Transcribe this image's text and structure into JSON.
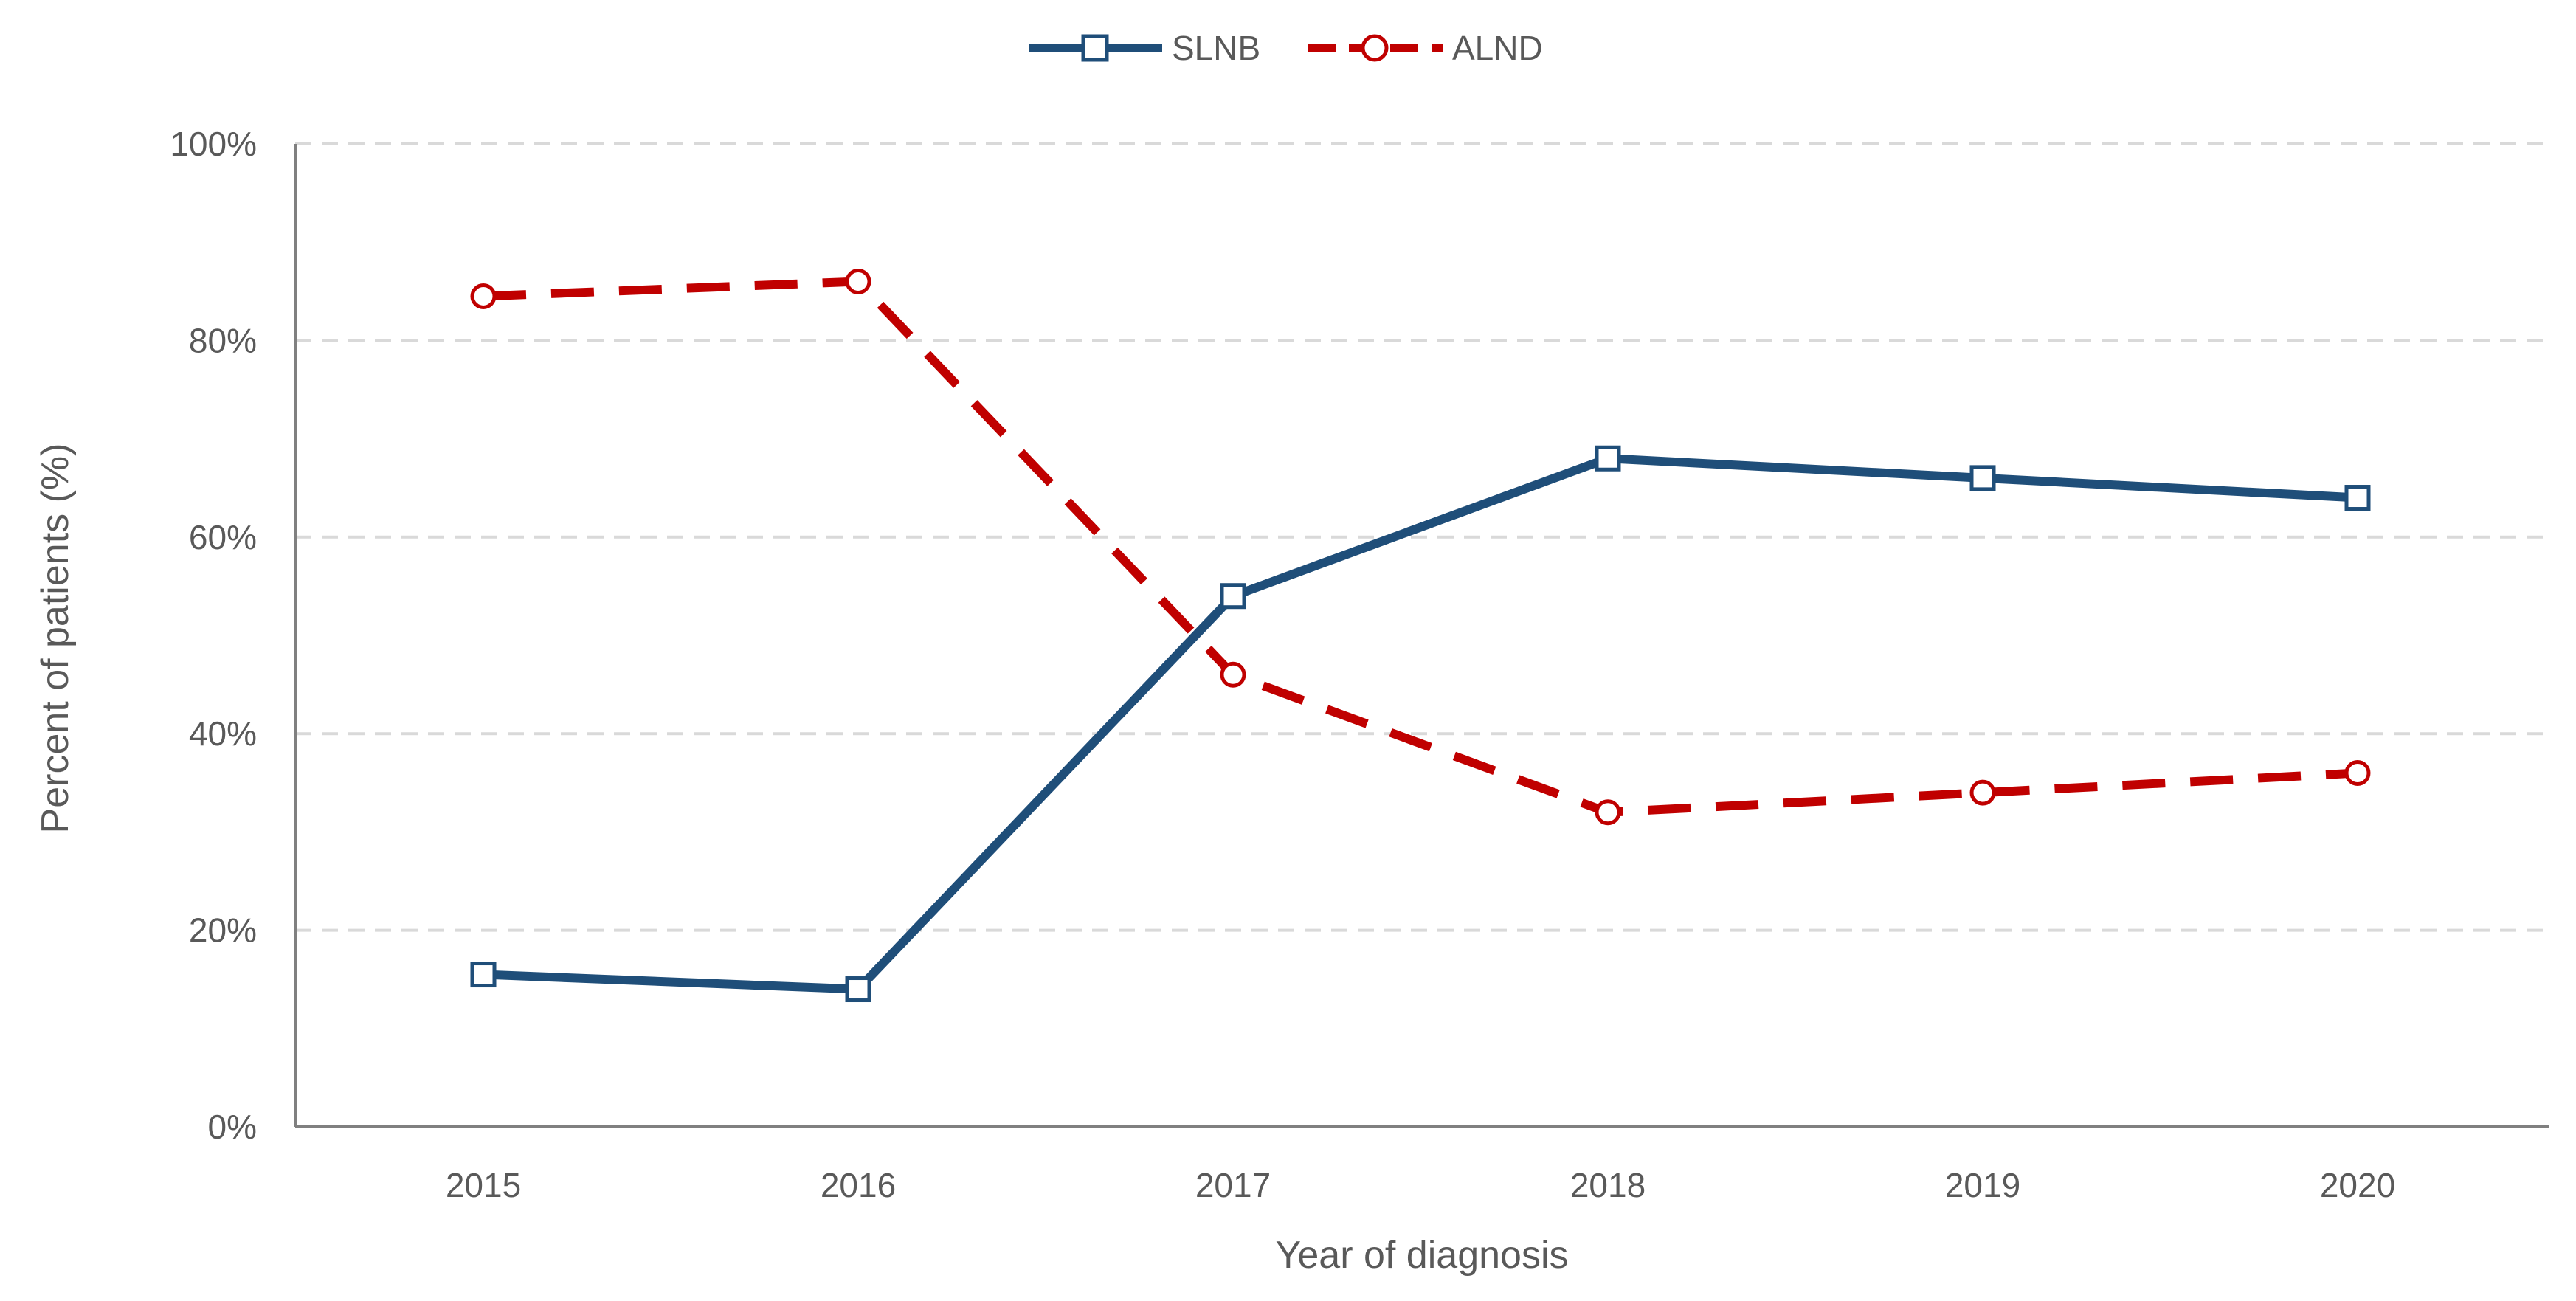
{
  "chart_data": {
    "type": "line",
    "title": "",
    "xlabel": "Year of diagnosis",
    "ylabel": "Percent of patients (%)",
    "categories": [
      "2015",
      "2016",
      "2017",
      "2018",
      "2019",
      "2020"
    ],
    "ylim": [
      0,
      100
    ],
    "yticks": [
      0,
      20,
      40,
      60,
      80,
      100
    ],
    "ytick_labels": [
      "0%",
      "20%",
      "40%",
      "60%",
      "80%",
      "100%"
    ],
    "grid": "horizontal dashed",
    "legend_position": "top-center",
    "series": [
      {
        "name": "SLNB",
        "values": [
          15.5,
          14.0,
          54.0,
          68.0,
          66.0,
          64.0
        ],
        "color": "#1f4e79",
        "line_style": "solid",
        "marker": "square"
      },
      {
        "name": "ALND",
        "values": [
          84.5,
          86.0,
          46.0,
          32.0,
          34.0,
          36.0
        ],
        "color": "#c00000",
        "line_style": "dashed",
        "marker": "circle"
      }
    ]
  }
}
